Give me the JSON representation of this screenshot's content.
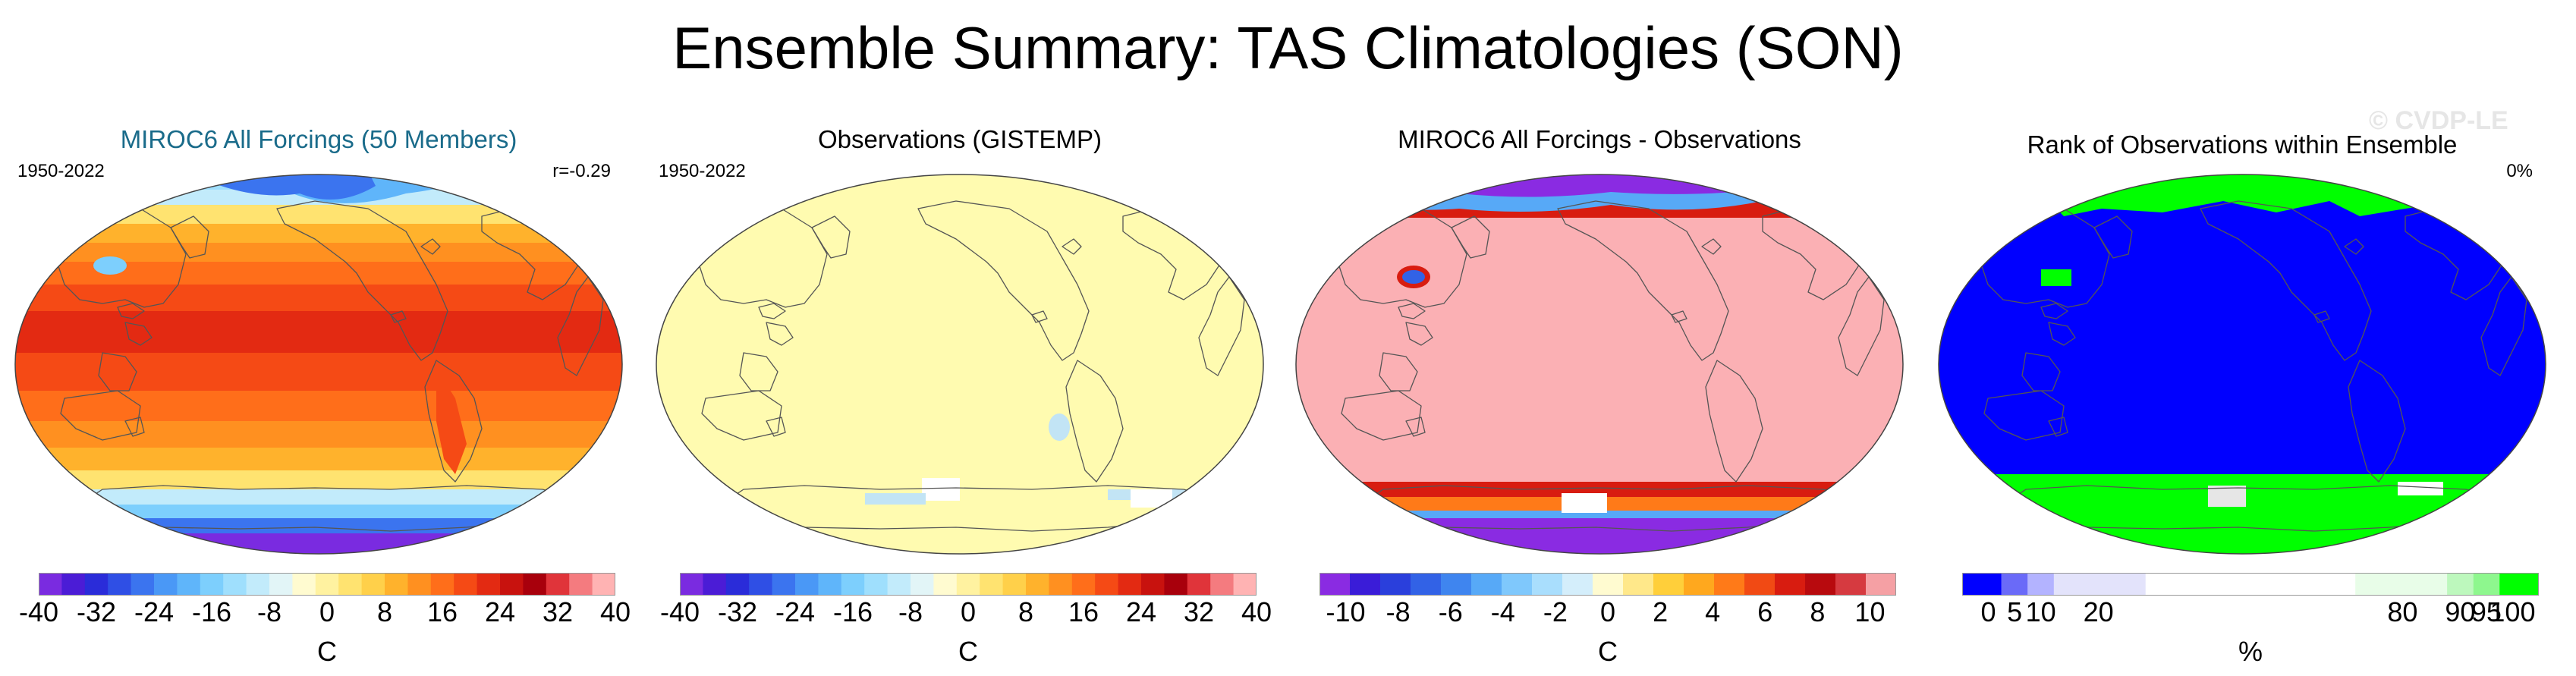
{
  "title": "Ensemble Summary: TAS Climatologies (SON)",
  "watermark": "© CVDP-LE",
  "chart_data": [
    {
      "type": "heatmap",
      "title": "MIROC6 All Forcings (50 Members)",
      "title_color": "#1a6b8a",
      "left_label": "1950-2022",
      "right_label": "r=-0.29",
      "units": "C",
      "ticks": [
        "-40",
        "-32",
        "-24",
        "-16",
        "-8",
        "0",
        "8",
        "16",
        "24",
        "32",
        "40"
      ],
      "range": [
        -40,
        40
      ],
      "colors": [
        "#7a2be0",
        "#4b1cd6",
        "#2a2cd9",
        "#2f4fe5",
        "#3b74ef",
        "#4a98f6",
        "#5fb5fa",
        "#7dcffd",
        "#9fdffd",
        "#c2ebfb",
        "#e2f5f7",
        "#fffbd0",
        "#fff2a0",
        "#ffe370",
        "#ffd04a",
        "#ffb22c",
        "#ff9020",
        "#ff6e1a",
        "#f54a15",
        "#e32a12",
        "#c8120e",
        "#a8000c",
        "#e0343a",
        "#f47b7f",
        "#ffb3b3"
      ],
      "map_style": "climatology"
    },
    {
      "type": "heatmap",
      "title": "Observations (GISTEMP)",
      "title_color": "#000000",
      "left_label": "1950-2022",
      "right_label": "",
      "units": "C",
      "ticks": [
        "-40",
        "-32",
        "-24",
        "-16",
        "-8",
        "0",
        "8",
        "16",
        "24",
        "32",
        "40"
      ],
      "range": [
        -40,
        40
      ],
      "colors": [
        "#7a2be0",
        "#4b1cd6",
        "#2a2cd9",
        "#2f4fe5",
        "#3b74ef",
        "#4a98f6",
        "#5fb5fa",
        "#7dcffd",
        "#9fdffd",
        "#c2ebfb",
        "#e2f5f7",
        "#fffbd0",
        "#fff2a0",
        "#ffe370",
        "#ffd04a",
        "#ffb22c",
        "#ff9020",
        "#ff6e1a",
        "#f54a15",
        "#e32a12",
        "#c8120e",
        "#a8000c",
        "#e0343a",
        "#f47b7f",
        "#ffb3b3"
      ],
      "map_style": "observations"
    },
    {
      "type": "heatmap",
      "title": "MIROC6 All Forcings - Observations",
      "title_color": "#000000",
      "left_label": "",
      "right_label": "",
      "units": "C",
      "ticks": [
        "-10",
        "-8",
        "-6",
        "-4",
        "-2",
        "0",
        "2",
        "4",
        "6",
        "8",
        "10"
      ],
      "range": [
        -11,
        11
      ],
      "colors": [
        "#8a2be2",
        "#3a1cd8",
        "#2a3fdc",
        "#3262e6",
        "#3f85ef",
        "#57a9f7",
        "#7fc8fc",
        "#a9defd",
        "#d4eefb",
        "#fffbd0",
        "#ffe88a",
        "#ffcf3a",
        "#ffa81e",
        "#ff7a18",
        "#f14a14",
        "#d81c10",
        "#b80a0e",
        "#d63a40",
        "#f5a0a4"
      ],
      "map_style": "difference"
    },
    {
      "type": "heatmap",
      "title": "Rank of Observations within Ensemble",
      "title_color": "#000000",
      "left_label": "",
      "right_label": "0%",
      "units": "%",
      "ticks": [
        "0",
        "5",
        "10",
        "20",
        "80",
        "90",
        "95",
        "100"
      ],
      "range": [
        -5,
        105
      ],
      "bins": [
        -5,
        2.5,
        7.5,
        12.5,
        30,
        70,
        87.5,
        92.5,
        97.5,
        105
      ],
      "colors": [
        "#0000ff",
        "#6a6af8",
        "#b3b3ff",
        "#e3e3fb",
        "#ffffff",
        "#e8fde8",
        "#bdf8bd",
        "#8ef78e",
        "#00ff00"
      ],
      "map_style": "rank"
    }
  ]
}
